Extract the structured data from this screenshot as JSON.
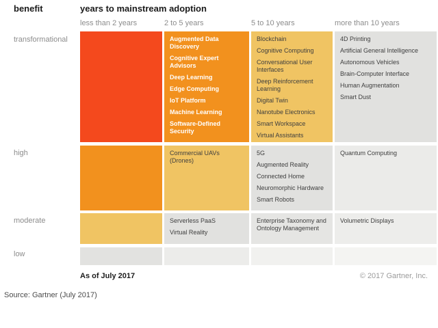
{
  "header": {
    "benefit_label": "benefit",
    "adoption_label": "years to mainstream adoption"
  },
  "columns": [
    "less than 2 years",
    "2 to 5 years",
    "5 to 10 years",
    "more than 10 years"
  ],
  "matrix": {
    "rows": [
      {
        "label": "transformational",
        "cells": [
          {
            "bg": "#f4491d",
            "fg": "#ffffff",
            "bold": true,
            "items": []
          },
          {
            "bg": "#f2911e",
            "fg": "#ffffff",
            "bold": true,
            "items": [
              "Augmented Data Discovery",
              "Cognitive Expert Advisors",
              "Deep Learning",
              "Edge Computing",
              "IoT Platform",
              "Machine Learning",
              "Software-Defined Security"
            ]
          },
          {
            "bg": "#f0c463",
            "fg": "#3e3e3e",
            "bold": false,
            "items": [
              "Blockchain",
              "Cognitive Computing",
              "Conversational User Interfaces",
              "Deep Reinforcement Learning",
              "Digital Twin",
              "Nanotube Electronics",
              "Smart Workspace",
              "Virtual Assistants"
            ]
          },
          {
            "bg": "#e1e1df",
            "fg": "#3e3e3e",
            "bold": false,
            "items": [
              "4D Printing",
              "Artificial General Intelligence",
              "Autonomous Vehicles",
              "Brain-Computer Interface",
              "Human Augmentation",
              "Smart Dust"
            ]
          }
        ]
      },
      {
        "label": "high",
        "cells": [
          {
            "bg": "#f2911e",
            "fg": "#ffffff",
            "bold": true,
            "items": []
          },
          {
            "bg": "#f0c463",
            "fg": "#3e3e3e",
            "bold": false,
            "items": [
              "Commercial UAVs (Drones)"
            ]
          },
          {
            "bg": "#e1e1df",
            "fg": "#3e3e3e",
            "bold": false,
            "items": [
              "5G",
              "Augmented Reality",
              "Connected Home",
              "Neuromorphic Hardware",
              "Smart Robots"
            ]
          },
          {
            "bg": "#ebebe9",
            "fg": "#3e3e3e",
            "bold": false,
            "items": [
              "Quantum Computing"
            ]
          }
        ]
      },
      {
        "label": "moderate",
        "cells": [
          {
            "bg": "#f0c463",
            "fg": "#3e3e3e",
            "bold": false,
            "items": []
          },
          {
            "bg": "#e1e1df",
            "fg": "#3e3e3e",
            "bold": false,
            "items": [
              "Serverless PaaS",
              "Virtual Reality"
            ]
          },
          {
            "bg": "#e5e5e3",
            "fg": "#3e3e3e",
            "bold": false,
            "items": [
              "Enterprise Taxonomy and Ontology Management"
            ]
          },
          {
            "bg": "#ededeb",
            "fg": "#3e3e3e",
            "bold": false,
            "items": [
              "Volumetric Displays"
            ]
          }
        ]
      },
      {
        "label": "low",
        "cells": [
          {
            "bg": "#e2e2e0",
            "fg": "#3e3e3e",
            "bold": false,
            "items": []
          },
          {
            "bg": "#ececea",
            "fg": "#3e3e3e",
            "bold": false,
            "items": []
          },
          {
            "bg": "#f1f1ef",
            "fg": "#3e3e3e",
            "bold": false,
            "items": []
          },
          {
            "bg": "#f4f4f2",
            "fg": "#3e3e3e",
            "bold": false,
            "items": []
          }
        ]
      }
    ]
  },
  "footer": {
    "as_of": "As of July 2017",
    "copyright": "© 2017 Gartner, Inc.",
    "source": "Source: Gartner (July 2017)"
  },
  "chart_data": {
    "type": "heatmap",
    "title": "years to mainstream adoption",
    "xlabel": "years to mainstream adoption",
    "ylabel": "benefit",
    "x_categories": [
      "less than 2 years",
      "2 to 5 years",
      "5 to 10 years",
      "more than 10 years"
    ],
    "y_categories": [
      "transformational",
      "high",
      "moderate",
      "low"
    ],
    "legend_position": "none",
    "values": [
      [
        [],
        [
          "Augmented Data Discovery",
          "Cognitive Expert Advisors",
          "Deep Learning",
          "Edge Computing",
          "IoT Platform",
          "Machine Learning",
          "Software-Defined Security"
        ],
        [
          "Blockchain",
          "Cognitive Computing",
          "Conversational User Interfaces",
          "Deep Reinforcement Learning",
          "Digital Twin",
          "Nanotube Electronics",
          "Smart Workspace",
          "Virtual Assistants"
        ],
        [
          "4D Printing",
          "Artificial General Intelligence",
          "Autonomous Vehicles",
          "Brain-Computer Interface",
          "Human Augmentation",
          "Smart Dust"
        ]
      ],
      [
        [],
        [
          "Commercial UAVs (Drones)"
        ],
        [
          "5G",
          "Augmented Reality",
          "Connected Home",
          "Neuromorphic Hardware",
          "Smart Robots"
        ],
        [
          "Quantum Computing"
        ]
      ],
      [
        [],
        [
          "Serverless PaaS",
          "Virtual Reality"
        ],
        [
          "Enterprise Taxonomy and Ontology Management"
        ],
        [
          "Volumetric Displays"
        ]
      ],
      [
        [],
        [],
        [],
        []
      ]
    ],
    "annotations": [
      "As of July 2017",
      "© 2017 Gartner, Inc.",
      "Source: Gartner (July 2017)"
    ]
  }
}
